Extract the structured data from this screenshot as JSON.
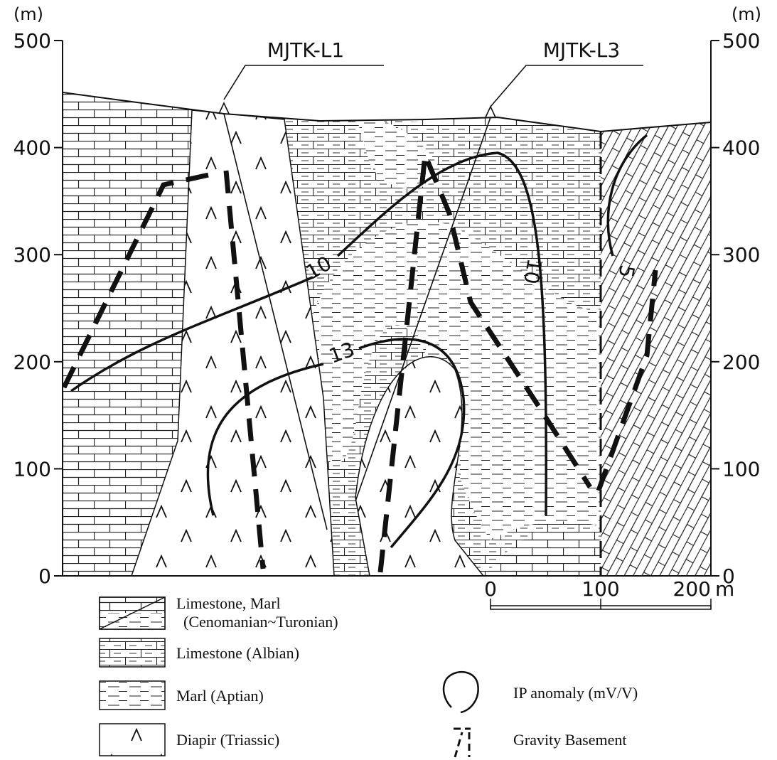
{
  "axis": {
    "unit_left": "(m)",
    "unit_right": "(m)",
    "ticks": [
      0,
      100,
      200,
      300,
      400,
      500
    ]
  },
  "boreholes": [
    {
      "label": "MJTK-L1"
    },
    {
      "label": "MJTK-L3"
    }
  ],
  "contour_labels": [
    "10",
    "13",
    "10",
    "5"
  ],
  "scale_bar": {
    "ticks": [
      0,
      100,
      200
    ],
    "unit": "m"
  },
  "legend": [
    {
      "label": "Limestone, Marl",
      "sublabel": "(Cenomanian~Turonian)"
    },
    {
      "label": "Limestone (Albian)"
    },
    {
      "label": "Marl (Aptian)"
    },
    {
      "label": "Diapir (Triassic)"
    },
    {
      "label": "IP anomaly (mV/V)"
    },
    {
      "label": "Gravity Basement"
    }
  ]
}
